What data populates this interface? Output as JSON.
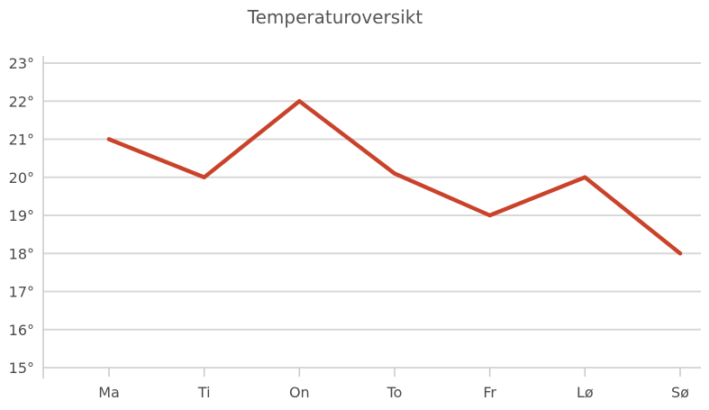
{
  "chart_data": {
    "type": "line",
    "title": "Temperaturoversikt",
    "categories": [
      "Ma",
      "Ti",
      "On",
      "To",
      "Fr",
      "Lø",
      "Sø"
    ],
    "values": [
      21,
      20,
      22,
      20.1,
      19,
      20,
      18
    ],
    "ylim": [
      15,
      23
    ],
    "yticks": [
      "15°",
      "16°",
      "17°",
      "18°",
      "19°",
      "20°",
      "21°",
      "22°",
      "23°"
    ],
    "grid": true,
    "xlabel": "",
    "ylabel": "",
    "colors": {
      "line": "#c9432a"
    }
  }
}
